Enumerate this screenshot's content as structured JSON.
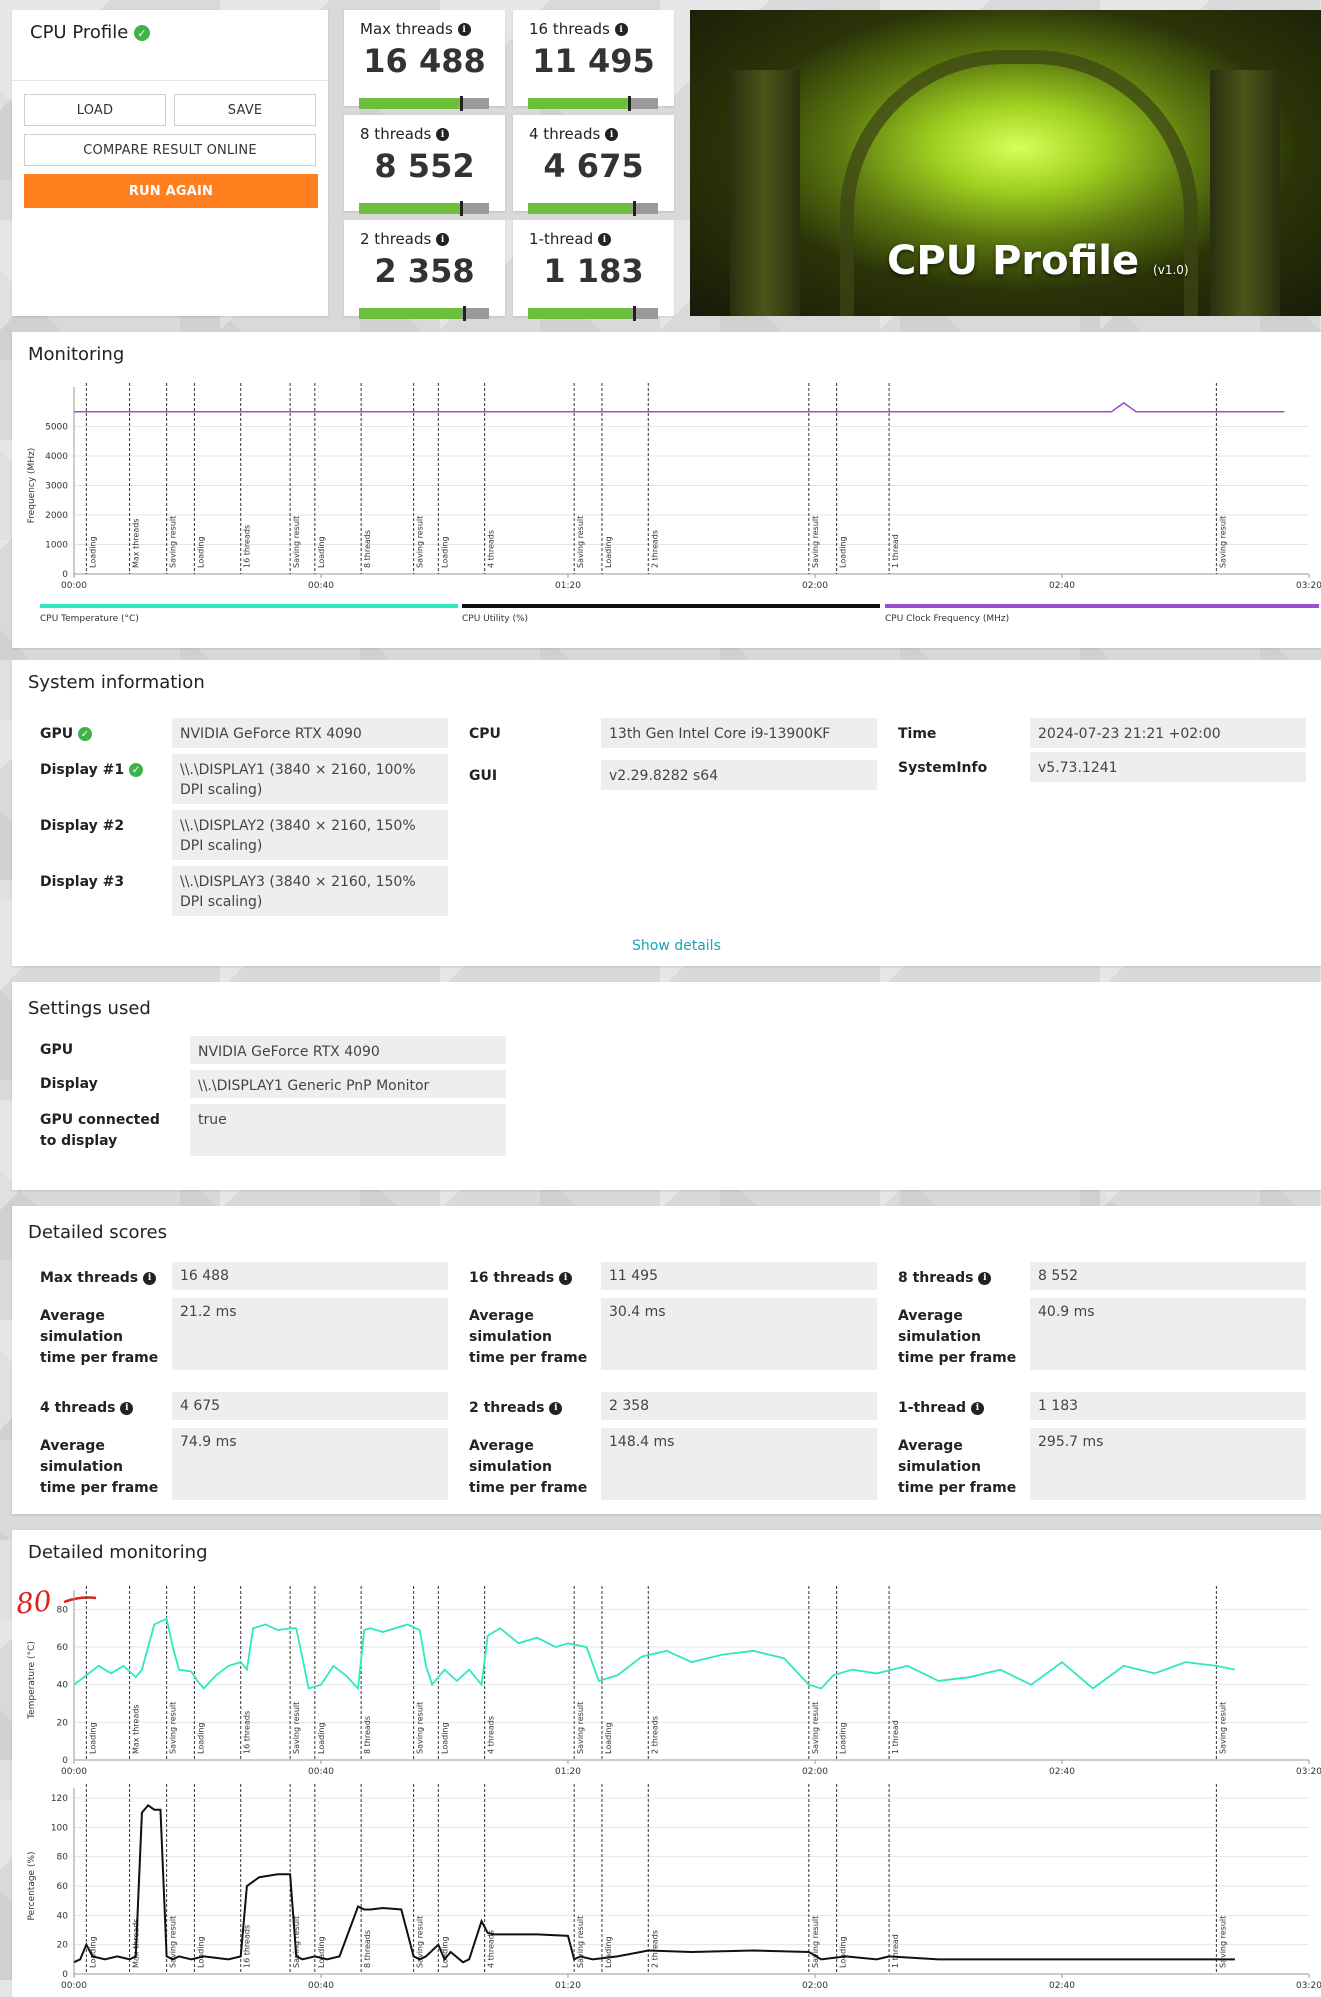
{
  "header": {
    "title": "CPU Profile",
    "load_label": "LOAD",
    "save_label": "SAVE",
    "compare_label": "COMPARE RESULT ONLINE",
    "run_again_label": "RUN AGAIN"
  },
  "scores": [
    {
      "label": "Max threads",
      "value": "16 488",
      "bar_fill": 0.77,
      "marker": 0.78
    },
    {
      "label": "16 threads",
      "value": "11 495",
      "bar_fill": 0.76,
      "marker": 0.77
    },
    {
      "label": "8 threads",
      "value": "8 552",
      "bar_fill": 0.77,
      "marker": 0.78
    },
    {
      "label": "4 threads",
      "value": "4 675",
      "bar_fill": 0.8,
      "marker": 0.81
    },
    {
      "label": "2 threads",
      "value": "2 358",
      "bar_fill": 0.79,
      "marker": 0.8
    },
    {
      "label": "1-thread",
      "value": "1 183",
      "bar_fill": 0.8,
      "marker": 0.81
    }
  ],
  "hero": {
    "title": "CPU Profile",
    "version": "(v1.0)"
  },
  "monitoring": {
    "title": "Monitoring",
    "ylabel": "Frequency (MHz)",
    "legend": [
      "CPU Temperature (°C)",
      "CPU Utility (%)",
      "CPU Clock Frequency (MHz)"
    ],
    "legend_colors": [
      "#2ee8c0",
      "#111111",
      "#9a4fcf"
    ]
  },
  "system_info": {
    "title": "System information",
    "gpu_label": "GPU",
    "gpu_value": "NVIDIA GeForce RTX 4090",
    "display1_label": "Display #1",
    "display1_value": "\\\\.\\DISPLAY1 (3840 × 2160, 100% DPI scaling)",
    "display2_label": "Display #2",
    "display2_value": "\\\\.\\DISPLAY2 (3840 × 2160, 150% DPI scaling)",
    "display3_label": "Display #3",
    "display3_value": "\\\\.\\DISPLAY3 (3840 × 2160, 150% DPI scaling)",
    "cpu_label": "CPU",
    "cpu_value": "13th Gen Intel Core i9-13900KF",
    "gui_label": "GUI",
    "gui_value": "v2.29.8282 s64",
    "time_label": "Time",
    "time_value": "2024-07-23 21:21 +02:00",
    "sysinfo_label": "SystemInfo",
    "sysinfo_value": "v5.73.1241",
    "show_details": "Show details"
  },
  "settings": {
    "title": "Settings used",
    "gpu_label": "GPU",
    "gpu_value": "NVIDIA GeForce RTX 4090",
    "display_label": "Display",
    "display_value": "\\\\.\\DISPLAY1 Generic PnP Monitor",
    "connected_label": "GPU connected to display",
    "connected_value": "true"
  },
  "detailed_scores": {
    "title": "Detailed scores",
    "avg_label": "Average simulation time per frame",
    "items": [
      {
        "label": "Max threads",
        "score": "16 488",
        "avg": "21.2 ms"
      },
      {
        "label": "16 threads",
        "score": "11 495",
        "avg": "30.4 ms"
      },
      {
        "label": "8 threads",
        "score": "8 552",
        "avg": "40.9 ms"
      },
      {
        "label": "4 threads",
        "score": "4 675",
        "avg": "74.9 ms"
      },
      {
        "label": "2 threads",
        "score": "2 358",
        "avg": "148.4 ms"
      },
      {
        "label": "1-thread",
        "score": "1 183",
        "avg": "295.7 ms"
      }
    ]
  },
  "detailed_monitoring": {
    "title": "Detailed monitoring",
    "annotation": "80",
    "temp_ylabel": "Temperature (°C)",
    "util_ylabel": "Percentage (%)"
  },
  "chart_data": [
    {
      "type": "line",
      "name": "CPU Clock Frequency",
      "ylabel": "Frequency (MHz)",
      "ylim": [
        0,
        6000
      ],
      "yticks": [
        0,
        1000,
        2000,
        3000,
        4000,
        5000
      ],
      "xticks": [
        "00:00",
        "00:40",
        "01:20",
        "02:00",
        "02:40",
        "03:20"
      ],
      "xlim_s": [
        0,
        200
      ],
      "segments": [
        {
          "t": 2,
          "label": "Loading"
        },
        {
          "t": 9,
          "label": "Max threads"
        },
        {
          "t": 15,
          "label": "Saving result"
        },
        {
          "t": 19.5,
          "label": "Loading"
        },
        {
          "t": 27,
          "label": "16 threads"
        },
        {
          "t": 35,
          "label": "Saving result"
        },
        {
          "t": 39,
          "label": "Loading"
        },
        {
          "t": 46.5,
          "label": "8 threads"
        },
        {
          "t": 55,
          "label": "Saving result"
        },
        {
          "t": 59,
          "label": "Loading"
        },
        {
          "t": 66.5,
          "label": "4 threads"
        },
        {
          "t": 81,
          "label": "Saving result"
        },
        {
          "t": 85.5,
          "label": "Loading"
        },
        {
          "t": 93,
          "label": "2 threads"
        },
        {
          "t": 119,
          "label": "Saving result"
        },
        {
          "t": 123.5,
          "label": "Loading"
        },
        {
          "t": 132,
          "label": "1 thread"
        },
        {
          "t": 185,
          "label": "Saving result"
        }
      ],
      "series": [
        {
          "values_time": [
            0,
            20,
            40,
            60,
            80,
            100,
            120,
            140,
            160,
            168,
            170,
            172,
            180,
            190,
            196
          ],
          "values": [
            5500,
            5500,
            5500,
            5500,
            5500,
            5500,
            5500,
            5500,
            5500,
            5500,
            5800,
            5500,
            5500,
            5500,
            5500
          ]
        }
      ]
    },
    {
      "type": "line",
      "name": "CPU Temperature",
      "ylabel": "Temperature (°C)",
      "ylim": [
        0,
        85
      ],
      "yticks": [
        0,
        20,
        40,
        60,
        80
      ],
      "xticks": [
        "00:00",
        "00:40",
        "01:20",
        "02:00",
        "02:40",
        "03:20"
      ],
      "series": [
        {
          "values_time": [
            0,
            2,
            4,
            6,
            8,
            10,
            11,
            13,
            15,
            16,
            17,
            19,
            20,
            21,
            23,
            25,
            27,
            28,
            29,
            31,
            33,
            35,
            36,
            38,
            40,
            42,
            44,
            46,
            47,
            48,
            50,
            52,
            54,
            56,
            57,
            58,
            60,
            62,
            64,
            66,
            67,
            69,
            72,
            75,
            78,
            80,
            83,
            85,
            88,
            92,
            96,
            100,
            105,
            110,
            115,
            119,
            121,
            123,
            126,
            130,
            135,
            140,
            145,
            150,
            155,
            160,
            165,
            170,
            175,
            180,
            185,
            188
          ],
          "values": [
            40,
            45,
            50,
            46,
            50,
            44,
            48,
            72,
            75,
            60,
            48,
            47,
            42,
            38,
            45,
            50,
            52,
            48,
            70,
            72,
            69,
            70,
            70,
            38,
            40,
            50,
            45,
            38,
            69,
            70,
            68,
            70,
            72,
            69,
            50,
            40,
            48,
            42,
            48,
            40,
            66,
            70,
            62,
            65,
            60,
            62,
            60,
            42,
            45,
            55,
            58,
            52,
            56,
            58,
            54,
            40,
            38,
            45,
            48,
            46,
            50,
            42,
            44,
            48,
            40,
            52,
            38,
            50,
            46,
            52,
            50,
            48
          ]
        }
      ]
    },
    {
      "type": "line",
      "name": "CPU Utility",
      "ylabel": "Percentage (%)",
      "ylim": [
        0,
        120
      ],
      "yticks": [
        0,
        20,
        40,
        60,
        80,
        100,
        120
      ],
      "xticks": [
        "00:00",
        "00:40",
        "01:20",
        "02:00",
        "02:40",
        "03:20"
      ],
      "series": [
        {
          "values_time": [
            0,
            1,
            2,
            3,
            5,
            7,
            9,
            10,
            11,
            12,
            13,
            14,
            15,
            16,
            17,
            19,
            21,
            25,
            27,
            28,
            30,
            33,
            35,
            36,
            37,
            39,
            41,
            43,
            46,
            47,
            48,
            50,
            53,
            55,
            56,
            57,
            59,
            60,
            61,
            63,
            64,
            66,
            67,
            68,
            70,
            75,
            80,
            81,
            82,
            84,
            88,
            93,
            100,
            110,
            119,
            121,
            125,
            130,
            132,
            140,
            160,
            180,
            188
          ],
          "values": [
            8,
            10,
            20,
            12,
            10,
            12,
            10,
            12,
            110,
            115,
            112,
            112,
            12,
            10,
            12,
            10,
            12,
            10,
            12,
            60,
            66,
            68,
            68,
            12,
            10,
            12,
            10,
            12,
            46,
            44,
            44,
            45,
            44,
            12,
            10,
            12,
            20,
            10,
            15,
            8,
            10,
            36,
            28,
            27,
            27,
            27,
            26,
            10,
            12,
            10,
            12,
            16,
            15,
            16,
            15,
            10,
            12,
            10,
            12,
            10,
            10,
            10,
            10
          ]
        }
      ]
    }
  ]
}
